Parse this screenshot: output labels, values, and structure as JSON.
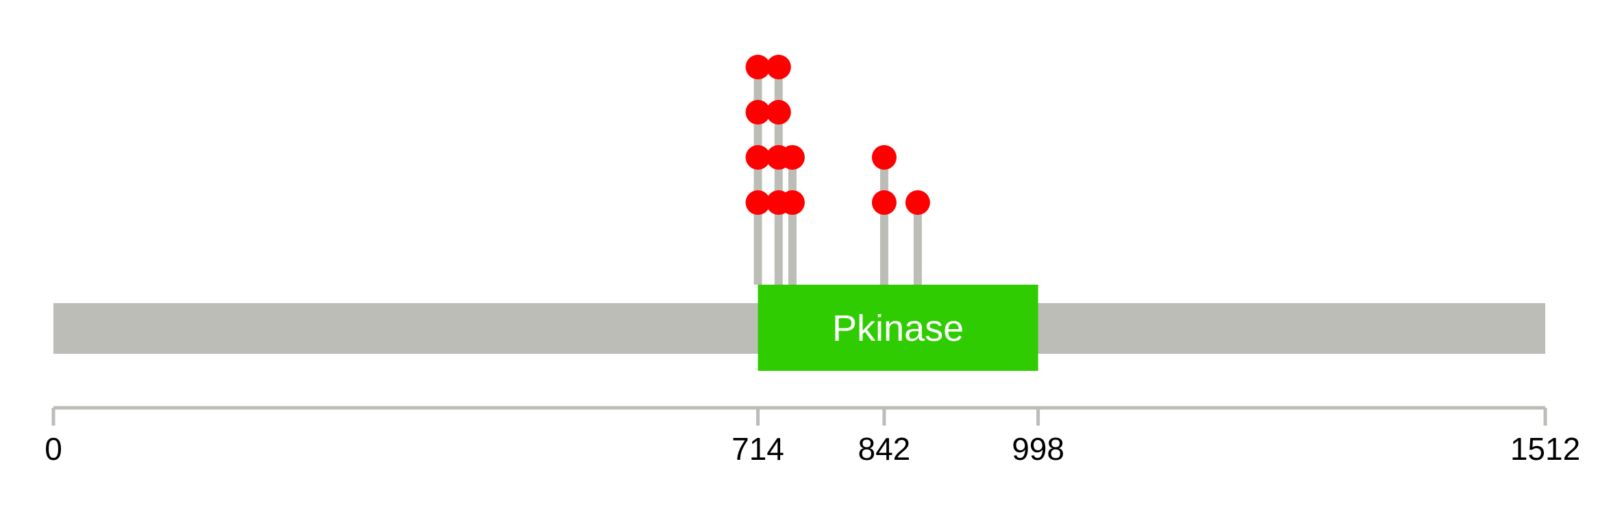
{
  "protein": {
    "length": 1512,
    "backbone_color": "#bbbdb6"
  },
  "domains": [
    {
      "name": "Pkinase",
      "start": 714,
      "end": 998,
      "color": "#2ecc00"
    }
  ],
  "axis": {
    "ticks": [
      {
        "value": 0,
        "label": "0"
      },
      {
        "value": 714,
        "label": "714"
      },
      {
        "value": 842,
        "label": "842"
      },
      {
        "value": 998,
        "label": "998"
      },
      {
        "value": 1512,
        "label": "1512"
      }
    ],
    "color": "#bbbdb6"
  },
  "mutations": [
    {
      "position": 714,
      "count": 4
    },
    {
      "position": 735,
      "count": 4
    },
    {
      "position": 749,
      "count": 2
    },
    {
      "position": 842,
      "count": 2
    },
    {
      "position": 876,
      "count": 1
    }
  ],
  "mutation_color": "#ff0000",
  "stem_color": "#bbbdb6"
}
